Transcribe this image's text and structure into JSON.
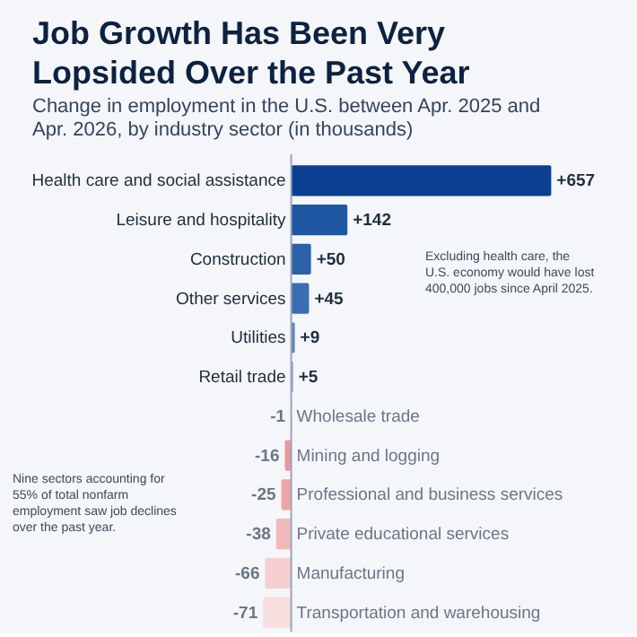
{
  "chart_data": {
    "type": "bar",
    "orientation": "horizontal",
    "title": "Job Growth Has Been Very Lopsided Over the Past Year",
    "subtitle": "Change in employment in the U.S. between Apr. 2025 and Apr. 2026, by industry sector (in thousands)",
    "categories": [
      "Health care and social assistance",
      "Leisure and hospitality",
      "Construction",
      "Other services",
      "Utilities",
      "Retail trade",
      "Wholesale trade",
      "Mining and logging",
      "Professional and business services",
      "Private educational services",
      "Manufacturing",
      "Transportation and warehousing"
    ],
    "values": [
      657,
      142,
      50,
      45,
      9,
      5,
      -1,
      -16,
      -25,
      -38,
      -66,
      -71
    ],
    "colors": [
      "#0b4090",
      "#1f56a2",
      "#2c61a8",
      "#3a6db3",
      "#5b86c0",
      "#8ea9cf",
      "#f0c8c8",
      "#e99a9a",
      "#eda6a6",
      "#f1baba",
      "#f5cfcf",
      "#f8dede"
    ],
    "value_labels": [
      "+657",
      "+142",
      "+50",
      "+45",
      "+9",
      "+5",
      "-1",
      "-16",
      "-25",
      "-38",
      "-66",
      "-71"
    ],
    "annotations": [
      "Excluding health care, the U.S. economy would have lost 400,000 jobs since April 2025.",
      "Nine sectors accounting for 55% of total nonfarm employment saw job declines over the past year."
    ],
    "data_labels": false
  }
}
